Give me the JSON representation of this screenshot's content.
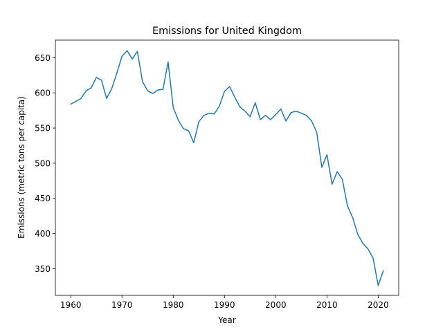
{
  "chart_data": {
    "type": "line",
    "title": "Emissions for United Kingdom",
    "xlabel": "Year",
    "ylabel": "Emissions (metric tons per capita)",
    "xlim": [
      1957,
      2024
    ],
    "ylim": [
      312,
      675
    ],
    "xticks": [
      1960,
      1970,
      1980,
      1990,
      2000,
      2010,
      2020
    ],
    "yticks": [
      350,
      400,
      450,
      500,
      550,
      600,
      650
    ],
    "grid": false,
    "series": [
      {
        "color": "#1f77b4",
        "x": [
          1960,
          1961,
          1962,
          1963,
          1964,
          1965,
          1966,
          1967,
          1968,
          1969,
          1970,
          1971,
          1972,
          1973,
          1974,
          1975,
          1976,
          1977,
          1978,
          1979,
          1980,
          1981,
          1982,
          1983,
          1984,
          1985,
          1986,
          1987,
          1988,
          1989,
          1990,
          1991,
          1992,
          1993,
          1994,
          1995,
          1996,
          1997,
          1998,
          1999,
          2000,
          2001,
          2002,
          2003,
          2004,
          2005,
          2006,
          2007,
          2008,
          2009,
          2010,
          2011,
          2012,
          2013,
          2014,
          2015,
          2016,
          2017,
          2018,
          2019,
          2020,
          2021
        ],
        "values": [
          584,
          588,
          592,
          603,
          607,
          622,
          618,
          592,
          606,
          628,
          652,
          660,
          648,
          659,
          616,
          603,
          599,
          604,
          605,
          644,
          579,
          561,
          549,
          546,
          529,
          559,
          568,
          571,
          570,
          581,
          602,
          609,
          594,
          580,
          574,
          566,
          586,
          562,
          568,
          562,
          569,
          577,
          560,
          572,
          574,
          571,
          568,
          560,
          544,
          494,
          512,
          470,
          488,
          477,
          439,
          423,
          399,
          386,
          378,
          365,
          326,
          347
        ]
      }
    ]
  }
}
